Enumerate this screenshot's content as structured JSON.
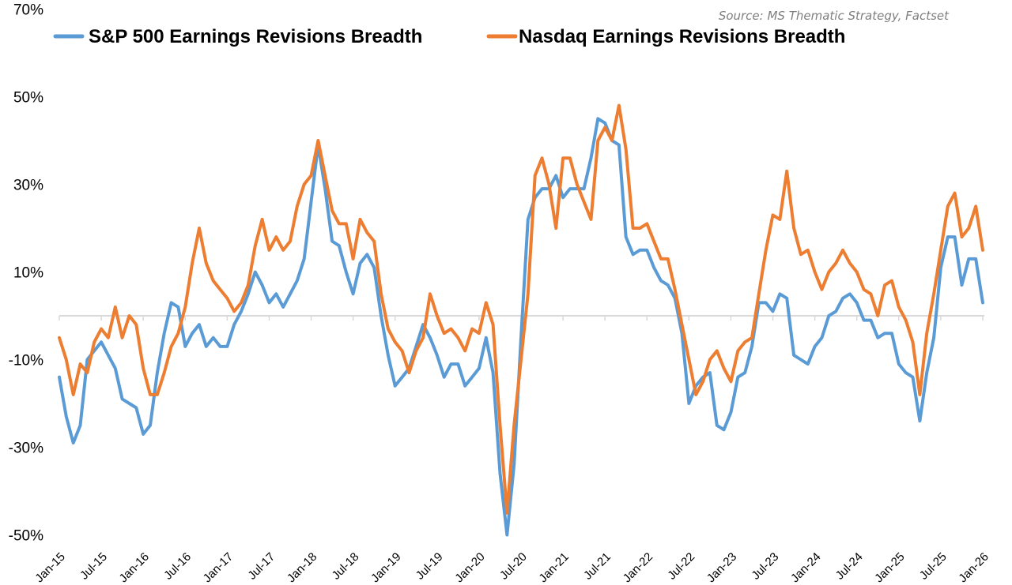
{
  "chart_data": {
    "type": "line",
    "title": "",
    "source": "Source: MS Thematic Strategy, Factset",
    "xlabel": "",
    "ylabel": "",
    "ylim": [
      -50,
      70
    ],
    "yticks": [
      70,
      50,
      30,
      10,
      -10,
      -30,
      -50
    ],
    "ytick_labels": [
      "70%",
      "50%",
      "30%",
      "10%",
      "-10%",
      "-30%",
      "-50%"
    ],
    "xtick_labels": [
      "Jan-15",
      "Jul-15",
      "Jan-16",
      "Jul-16",
      "Jan-17",
      "Jul-17",
      "Jan-18",
      "Jul-18",
      "Jan-19",
      "Jul-19",
      "Jan-20",
      "Jul-20",
      "Jan-21",
      "Jul-21",
      "Jan-22",
      "Jul-22",
      "Jan-23",
      "Jul-23",
      "Jan-24",
      "Jul-24",
      "Jan-25",
      "Jul-25",
      "Jan-26"
    ],
    "x_start": "Jan-15",
    "x_frequency": "monthly",
    "baseline": 0,
    "grid": false,
    "legend": {
      "placement": "top",
      "entries": [
        {
          "name": "S&P 500 Earnings Revisions Breadth",
          "color": "#5b9bd5"
        },
        {
          "name": "Nasdaq Earnings Revisions Breadth",
          "color": "#ed7d31"
        }
      ]
    },
    "series": [
      {
        "name": "S&P 500 Earnings Revisions Breadth",
        "color": "#5b9bd5",
        "unit": "%",
        "values": [
          -14,
          -23,
          -29,
          -25,
          -10,
          -8,
          -6,
          -9,
          -12,
          -19,
          -20,
          -21,
          -27,
          -25,
          -13,
          -4,
          3,
          2,
          -7,
          -4,
          -2,
          -7,
          -5,
          -7,
          -7,
          -2,
          1,
          5,
          10,
          7,
          3,
          5,
          2,
          5,
          8,
          13,
          26,
          39,
          29,
          17,
          16,
          10,
          5,
          12,
          14,
          11,
          0,
          -9,
          -16,
          -14,
          -12,
          -7,
          -2,
          -5,
          -9,
          -14,
          -11,
          -11,
          -16,
          -14,
          -12,
          -5,
          -13,
          -36,
          -50,
          -34,
          -5,
          22,
          27,
          29,
          29,
          32,
          27,
          29,
          29,
          29,
          36,
          45,
          44,
          40,
          39,
          18,
          14,
          15,
          15,
          11,
          8,
          7,
          4,
          -4,
          -20,
          -16,
          -14,
          -13,
          -25,
          -26,
          -22,
          -14,
          -13,
          -7,
          3,
          3,
          1,
          5,
          4,
          -9,
          -10,
          -11,
          -7,
          -5,
          0,
          1,
          4,
          5,
          3,
          -1,
          -1,
          -5,
          -4,
          -4,
          -11,
          -13,
          -14,
          -24,
          -13,
          -5,
          11,
          18,
          18,
          7,
          13,
          13,
          3
        ]
      },
      {
        "name": "Nasdaq Earnings Revisions Breadth",
        "color": "#ed7d31",
        "unit": "%",
        "values": [
          -5,
          -10,
          -18,
          -11,
          -13,
          -6,
          -3,
          -5,
          2,
          -5,
          0,
          -2,
          -12,
          -18,
          -18,
          -13,
          -7,
          -4,
          2,
          12,
          20,
          12,
          8,
          6,
          4,
          1,
          3,
          7,
          16,
          22,
          15,
          18,
          15,
          17,
          25,
          30,
          32,
          40,
          32,
          24,
          21,
          21,
          13,
          22,
          19,
          17,
          5,
          -3,
          -6,
          -8,
          -13,
          -8,
          -5,
          5,
          0,
          -4,
          -3,
          -5,
          -8,
          -3,
          -4,
          3,
          -2,
          -25,
          -45,
          -25,
          -10,
          5,
          32,
          36,
          30,
          20,
          36,
          36,
          30,
          26,
          22,
          40,
          43,
          40,
          48,
          38,
          20,
          20,
          21,
          17,
          13,
          13,
          6,
          -2,
          -10,
          -18,
          -15,
          -10,
          -8,
          -12,
          -15,
          -8,
          -6,
          -5,
          5,
          15,
          23,
          22,
          33,
          20,
          14,
          15,
          10,
          6,
          10,
          12,
          15,
          12,
          10,
          6,
          5,
          0,
          7,
          8,
          2,
          -1,
          -6,
          -18,
          -4,
          5,
          15,
          25,
          28,
          18,
          20,
          25,
          15
        ]
      }
    ]
  }
}
